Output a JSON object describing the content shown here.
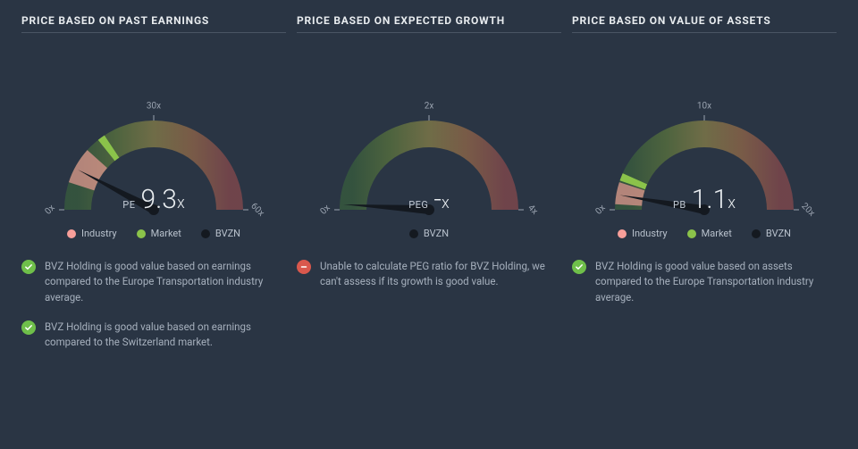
{
  "background_color": "#2a3544",
  "text_color": "#a6b0bd",
  "title_color": "#e8ecef",
  "divider_color": "#4a5564",
  "colors": {
    "industry": "#f89f9a",
    "market": "#8bc34a",
    "bvzn": "#141920",
    "good": "#6fbf4a",
    "bad": "#d9584d"
  },
  "gauge_gradient": [
    "#3d6b3a",
    "#6b8a3a",
    "#a89a4a",
    "#b97a4a",
    "#a85050"
  ],
  "gauge_track_alpha": 0.55,
  "panels": [
    {
      "title": "PRICE BASED ON PAST EARNINGS",
      "gauge": {
        "metric_label": "PE",
        "value": "9.3",
        "value_suffix": "x",
        "min_label": "0x",
        "mid_label": "30x",
        "max_label": "60x",
        "min": 0,
        "max": 60,
        "needle_value": 9.3,
        "industry": {
          "start": 6,
          "end": 14
        },
        "market": {
          "value": 18
        },
        "show_industry": true,
        "show_market": true
      },
      "legend": [
        {
          "label": "Industry",
          "color_key": "industry"
        },
        {
          "label": "Market",
          "color_key": "market"
        },
        {
          "label": "BVZN",
          "color_key": "bvzn"
        }
      ],
      "notes": [
        {
          "status": "good",
          "text": "BVZ Holding is good value based on earnings compared to the Europe Transportation industry average."
        },
        {
          "status": "good",
          "text": "BVZ Holding is good value based on earnings compared to the Switzerland market."
        }
      ]
    },
    {
      "title": "PRICE BASED ON EXPECTED GROWTH",
      "gauge": {
        "metric_label": "PEG",
        "value": "-",
        "value_suffix": "x",
        "min_label": "0x",
        "mid_label": "2x",
        "max_label": "4x",
        "min": 0,
        "max": 4,
        "needle_value": 0.08,
        "show_industry": false,
        "show_market": false
      },
      "legend": [
        {
          "label": "BVZN",
          "color_key": "bvzn"
        }
      ],
      "notes": [
        {
          "status": "bad",
          "text": "Unable to calculate PEG ratio for BVZ Holding, we can't assess if its growth is good value."
        }
      ]
    },
    {
      "title": "PRICE BASED ON VALUE OF ASSETS",
      "gauge": {
        "metric_label": "PB",
        "value": "1.1",
        "value_suffix": "x",
        "min_label": "0x",
        "mid_label": "10x",
        "max_label": "20x",
        "min": 0,
        "max": 20,
        "needle_value": 1.1,
        "industry": {
          "start": 0.4,
          "end": 2.0
        },
        "market": {
          "value": 2.4
        },
        "show_industry": true,
        "show_market": true
      },
      "legend": [
        {
          "label": "Industry",
          "color_key": "industry"
        },
        {
          "label": "Market",
          "color_key": "market"
        },
        {
          "label": "BVZN",
          "color_key": "bvzn"
        }
      ],
      "notes": [
        {
          "status": "good",
          "text": "BVZ Holding is good value based on assets compared to the Europe Transportation industry average."
        }
      ]
    }
  ]
}
